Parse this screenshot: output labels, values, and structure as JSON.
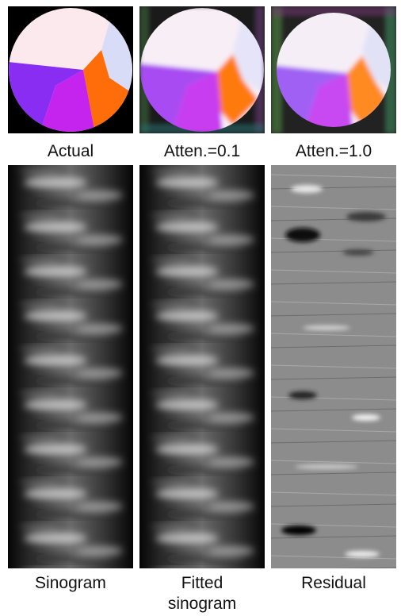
{
  "top_row": [
    {
      "label": "Actual"
    },
    {
      "label": "Atten.=0.1"
    },
    {
      "label": "Atten.=1.0"
    }
  ],
  "bottom_row": [
    {
      "label": "Sinogram"
    },
    {
      "label": "Fitted sinogram"
    },
    {
      "label": "Residual"
    }
  ]
}
